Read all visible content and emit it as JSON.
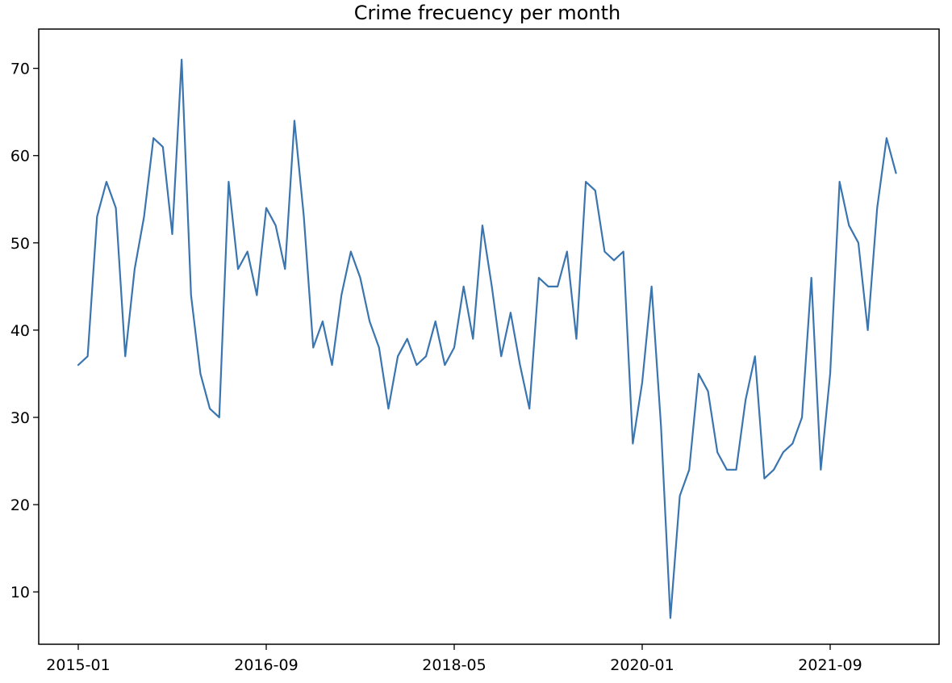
{
  "chart_data": {
    "type": "line",
    "title": "Crime frecuency per month",
    "xlabel": "",
    "ylabel": "",
    "x_start": "2015-01",
    "x_frequency": "monthly",
    "x_tick_labels": [
      "2015-01",
      "2016-09",
      "2018-05",
      "2020-01",
      "2021-09"
    ],
    "y_ticks": [
      10,
      20,
      30,
      40,
      50,
      60,
      70
    ],
    "ylim": [
      4,
      74.5
    ],
    "grid": false,
    "color": "#3b75af",
    "series": [
      {
        "values": [
          36,
          37,
          53,
          57,
          54,
          37,
          47,
          53,
          62,
          61,
          51,
          71,
          44,
          35,
          31,
          30,
          57,
          47,
          49,
          44,
          54,
          52,
          47,
          64,
          53,
          38,
          41,
          36,
          44,
          49,
          46,
          41,
          38,
          31,
          37,
          39,
          36,
          37,
          41,
          36,
          38,
          45,
          39,
          52,
          45,
          37,
          42,
          36,
          31,
          46,
          45,
          45,
          49,
          39,
          57,
          56,
          49,
          48,
          49,
          27,
          34,
          45,
          29,
          7,
          21,
          24,
          35,
          33,
          26,
          24,
          24,
          32,
          37,
          23,
          24,
          26,
          27,
          30,
          46,
          24,
          35,
          57,
          52,
          50,
          40,
          54,
          62,
          58
        ]
      }
    ]
  }
}
